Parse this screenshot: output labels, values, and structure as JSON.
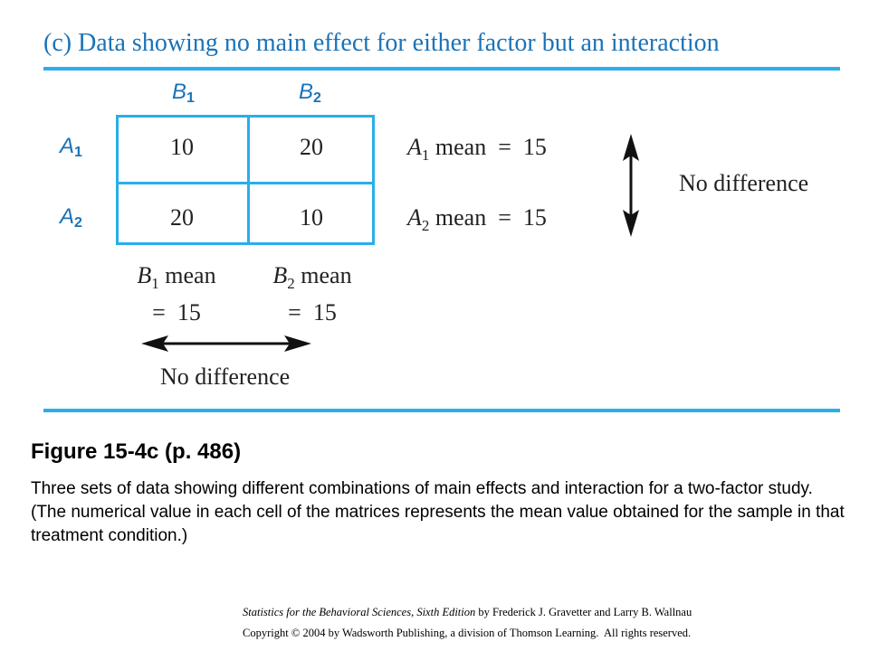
{
  "panel_title": "(c) Data showing no main effect for either factor but an interaction",
  "table": {
    "col_headers": [
      {
        "letter": "B",
        "subscript": "1"
      },
      {
        "letter": "B",
        "subscript": "2"
      }
    ],
    "row_headers": [
      {
        "letter": "A",
        "subscript": "1"
      },
      {
        "letter": "A",
        "subscript": "2"
      }
    ],
    "cells": [
      [
        "10",
        "20"
      ],
      [
        "20",
        "10"
      ]
    ]
  },
  "row_means": [
    {
      "letter": "A",
      "subscript": "1",
      "text": " mean  =  15"
    },
    {
      "letter": "A",
      "subscript": "2",
      "text": " mean  =  15"
    }
  ],
  "row_note": "No difference",
  "col_means": [
    {
      "letter": "B",
      "subscript": "1",
      "text": " mean",
      "value": "=  15"
    },
    {
      "letter": "B",
      "subscript": "2",
      "text": " mean",
      "value": "=  15"
    }
  ],
  "col_note": "No difference",
  "figure": {
    "title": "Figure 15-4c  (p. 486)",
    "caption": "Three sets of data showing different combinations of main effects and interaction for a two-factor study. (The numerical value in each cell of the matrices represents the mean value obtained for the sample in that treatment condition.)"
  },
  "credits": {
    "book_title": "Statistics for the Behavioral Sciences, Sixth Edition",
    "authors": " by Frederick J. Gravetter and Larry B. Wallnau",
    "copyright": "Copyright © 2004 by Wadsworth Publishing, a division of Thomson Learning.  All rights reserved."
  },
  "colors": {
    "accent": "#29aeea",
    "label": "#1a73b8",
    "text": "#222222"
  }
}
